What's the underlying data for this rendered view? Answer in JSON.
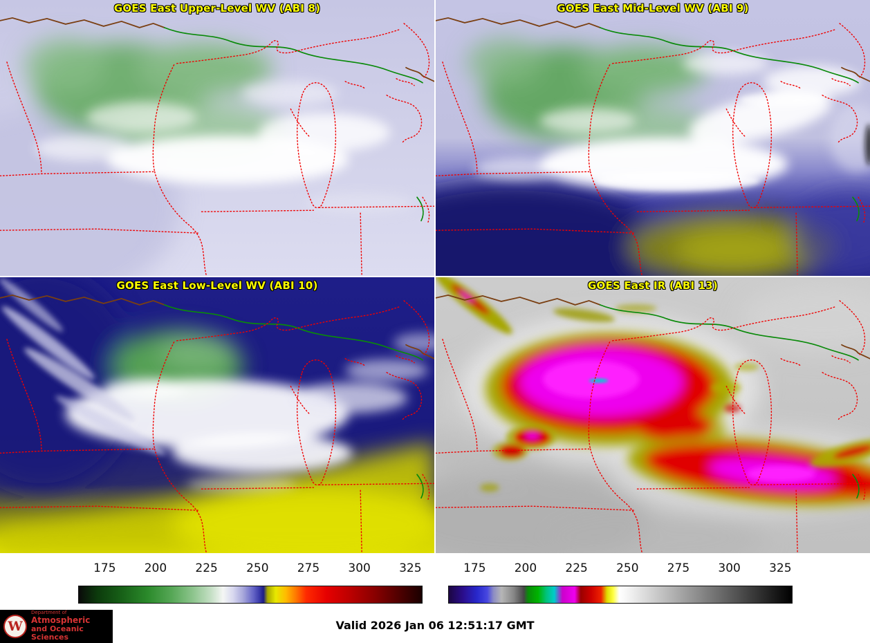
{
  "panels": [
    {
      "title": "GOES East Upper-Level WV (ABI 8)"
    },
    {
      "title": "GOES East Mid-Level WV (ABI 9)"
    },
    {
      "title": "GOES East Low-Level WV (ABI 10)"
    },
    {
      "title": "GOES East IR (ABI 13)"
    }
  ],
  "panel_title_style": {
    "color": "#ffff00",
    "outline": "#000000"
  },
  "map_colors": {
    "state_boundary": "#f00000",
    "international_boundary": "#7a3f12",
    "water_boundary": "#0a8a0a"
  },
  "colorbars": [
    {
      "id": "wv",
      "min": 162,
      "max": 331,
      "ticks": [
        "175",
        "200",
        "225",
        "250",
        "275",
        "300",
        "325"
      ],
      "tick_values": [
        175,
        200,
        225,
        250,
        275,
        300,
        325
      ],
      "stops": [
        [
          162,
          "#0a0a0a"
        ],
        [
          171,
          "#0c3a0c"
        ],
        [
          183,
          "#176017"
        ],
        [
          196,
          "#2b8a2b"
        ],
        [
          208,
          "#57a857"
        ],
        [
          218,
          "#8cc48c"
        ],
        [
          227,
          "#c4dfc4"
        ],
        [
          233,
          "#f4f6f4"
        ],
        [
          238,
          "#d8d8ef"
        ],
        [
          243,
          "#a6a6da"
        ],
        [
          248,
          "#6464c6"
        ],
        [
          251,
          "#3a3aaa"
        ],
        [
          253,
          "#1c1c84"
        ],
        [
          255,
          "#a8a800"
        ],
        [
          259,
          "#e8e800"
        ],
        [
          264,
          "#ffbb00"
        ],
        [
          269,
          "#ff7700"
        ],
        [
          274,
          "#ff2a00"
        ],
        [
          284,
          "#e60000"
        ],
        [
          296,
          "#ba0000"
        ],
        [
          308,
          "#880000"
        ],
        [
          320,
          "#4e0000"
        ],
        [
          331,
          "#1a0000"
        ]
      ]
    },
    {
      "id": "ir",
      "min": 162,
      "max": 331,
      "ticks": [
        "175",
        "200",
        "225",
        "250",
        "275",
        "300",
        "325"
      ],
      "tick_values": [
        175,
        200,
        225,
        250,
        275,
        300,
        325
      ],
      "stops": [
        [
          162,
          "#1c0642"
        ],
        [
          169,
          "#2a0d8c"
        ],
        [
          176,
          "#2828cc"
        ],
        [
          181,
          "#4848e0"
        ],
        [
          184,
          "#8c8cc4"
        ],
        [
          188,
          "#b6b6b6"
        ],
        [
          194,
          "#868686"
        ],
        [
          199,
          "#464646"
        ],
        [
          201,
          "#0a8a0a"
        ],
        [
          206,
          "#00b400"
        ],
        [
          210,
          "#00c27a"
        ],
        [
          214,
          "#00cccc"
        ],
        [
          218,
          "#cc00cc"
        ],
        [
          224,
          "#ee00ee"
        ],
        [
          227,
          "#9a0000"
        ],
        [
          232,
          "#cc0000"
        ],
        [
          237,
          "#ee2200"
        ],
        [
          240,
          "#dede00"
        ],
        [
          243,
          "#ffff44"
        ],
        [
          246,
          "#ffffff"
        ],
        [
          252,
          "#efefef"
        ],
        [
          331,
          "#000000"
        ]
      ]
    }
  ],
  "footer": {
    "valid_time": "Valid 2026 Jan 06 12:51:17 GMT"
  },
  "logo": {
    "crest_letter": "W",
    "line1": "Department of",
    "line2": "Atmospheric",
    "line3": "and Oceanic Sciences",
    "bg": "#000000",
    "text_color": "#d63333"
  }
}
